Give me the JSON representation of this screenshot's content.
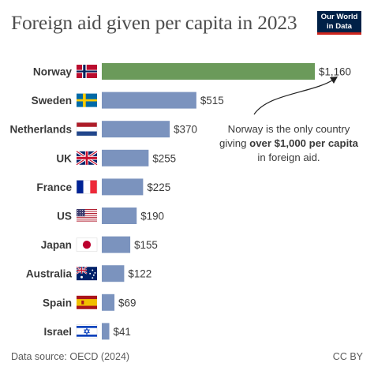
{
  "title": "Foreign aid given per capita in 2023",
  "logo": {
    "line1": "Our World",
    "line2": "in Data"
  },
  "annotation": {
    "line1": "Norway is the only country",
    "line2_prefix": "giving ",
    "line2_bold": "over $1,000 per capita",
    "line3": "in foreign aid."
  },
  "footer": {
    "source": "Data source: OECD (2024)",
    "license": "CC BY"
  },
  "colors": {
    "highlight": "#6b9a5a",
    "bar": "#7b93be",
    "label": "#3a3a3a",
    "title": "#4d4d4d"
  },
  "chart_data": {
    "type": "bar",
    "orientation": "horizontal",
    "categories": [
      "Norway",
      "Sweden",
      "Netherlands",
      "UK",
      "France",
      "US",
      "Japan",
      "Australia",
      "Spain",
      "Israel"
    ],
    "values": [
      1160,
      515,
      370,
      255,
      225,
      190,
      155,
      122,
      69,
      41
    ],
    "value_labels": [
      "$1,160",
      "$515",
      "$370",
      "$255",
      "$225",
      "$190",
      "$155",
      "$122",
      "$69",
      "$41"
    ],
    "flags": [
      "norway-flag",
      "sweden-flag",
      "netherlands-flag",
      "uk-flag",
      "france-flag",
      "us-flag",
      "japan-flag",
      "australia-flag",
      "spain-flag",
      "israel-flag"
    ],
    "highlight": "Norway",
    "title": "Foreign aid given per capita in 2023",
    "xlabel": "",
    "ylabel": "",
    "grid": false
  }
}
